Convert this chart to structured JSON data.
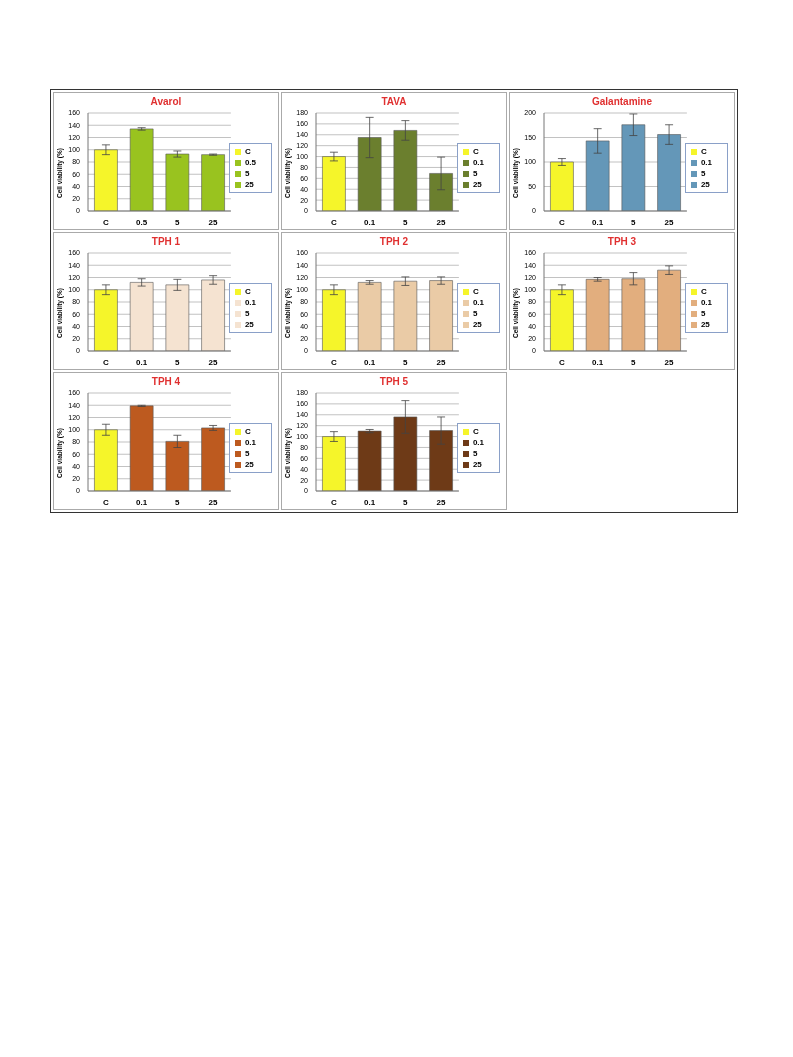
{
  "chart_data": [
    {
      "type": "bar",
      "title": "Avarol",
      "ylabel": "Cell viability (%)",
      "categories": [
        "C",
        "0.5",
        "5",
        "25"
      ],
      "stacked": true,
      "series": [
        {
          "name": "C",
          "color": "#f5f52a",
          "values": [
            100,
            null,
            null,
            null
          ],
          "errors": [
            8,
            null,
            null,
            null
          ]
        },
        {
          "name": "0.5",
          "color": "#99c31f",
          "values": [
            null,
            134,
            null,
            null
          ],
          "errors": [
            null,
            2,
            null,
            null
          ]
        },
        {
          "name": "5",
          "color": "#99c31f",
          "values": [
            null,
            null,
            93,
            null
          ],
          "errors": [
            null,
            null,
            5,
            null
          ]
        },
        {
          "name": "25",
          "color": "#99c31f",
          "values": [
            null,
            null,
            null,
            92
          ],
          "errors": [
            null,
            null,
            null,
            1
          ]
        }
      ],
      "ylim": [
        0,
        160
      ],
      "yticks": [
        0,
        20,
        40,
        60,
        80,
        100,
        120,
        140,
        160
      ],
      "grid": "y",
      "legend": "right"
    },
    {
      "type": "bar",
      "title": "TAVA",
      "ylabel": "Cell viability (%)",
      "categories": [
        "C",
        "0.1",
        "5",
        "25"
      ],
      "stacked": true,
      "series": [
        {
          "name": "C",
          "color": "#f5f52a",
          "values": [
            100,
            null,
            null,
            null
          ],
          "errors": [
            8,
            null,
            null,
            null
          ]
        },
        {
          "name": "0.1",
          "color": "#6b7f2e",
          "values": [
            null,
            135,
            null,
            null
          ],
          "errors": [
            null,
            37,
            null,
            null
          ]
        },
        {
          "name": "5",
          "color": "#6b7f2e",
          "values": [
            null,
            null,
            148,
            null
          ],
          "errors": [
            null,
            null,
            18,
            null
          ]
        },
        {
          "name": "25",
          "color": "#6b7f2e",
          "values": [
            null,
            null,
            null,
            69
          ],
          "errors": [
            null,
            null,
            null,
            30
          ]
        }
      ],
      "ylim": [
        0,
        180
      ],
      "yticks": [
        0,
        20,
        40,
        60,
        80,
        100,
        120,
        140,
        160,
        180
      ],
      "grid": "y",
      "legend": "right"
    },
    {
      "type": "bar",
      "title": "Galantamine",
      "ylabel": "Cell viability (%)",
      "categories": [
        "C",
        "0.1",
        "5",
        "25"
      ],
      "stacked": true,
      "series": [
        {
          "name": "C",
          "color": "#f5f52a",
          "values": [
            100,
            null,
            null,
            null
          ],
          "errors": [
            7,
            null,
            null,
            null
          ]
        },
        {
          "name": "0.1",
          "color": "#6497b8",
          "values": [
            null,
            143,
            null,
            null
          ],
          "errors": [
            null,
            25,
            null,
            null
          ]
        },
        {
          "name": "5",
          "color": "#6497b8",
          "values": [
            null,
            null,
            176,
            null
          ],
          "errors": [
            null,
            null,
            22,
            null
          ]
        },
        {
          "name": "25",
          "color": "#6497b8",
          "values": [
            null,
            null,
            null,
            156
          ],
          "errors": [
            null,
            null,
            null,
            20
          ]
        }
      ],
      "ylim": [
        0,
        200
      ],
      "yticks": [
        0,
        50,
        100,
        150,
        200
      ],
      "grid": "y",
      "legend": "right"
    },
    {
      "type": "bar",
      "title": "TPH 1",
      "ylabel": "Cell viability (%)",
      "categories": [
        "C",
        "0.1",
        "5",
        "25"
      ],
      "stacked": true,
      "series": [
        {
          "name": "C",
          "color": "#f5f52a",
          "values": [
            100,
            null,
            null,
            null
          ],
          "errors": [
            8,
            null,
            null,
            null
          ]
        },
        {
          "name": "0.1",
          "color": "#f5e3d1",
          "values": [
            null,
            112,
            null,
            null
          ],
          "errors": [
            null,
            6,
            null,
            null
          ]
        },
        {
          "name": "5",
          "color": "#f5e3d1",
          "values": [
            null,
            null,
            108,
            null
          ],
          "errors": [
            null,
            null,
            9,
            null
          ]
        },
        {
          "name": "25",
          "color": "#f5e3d1",
          "values": [
            null,
            null,
            null,
            116
          ],
          "errors": [
            null,
            null,
            null,
            7
          ]
        }
      ],
      "ylim": [
        0,
        160
      ],
      "yticks": [
        0,
        20,
        40,
        60,
        80,
        100,
        120,
        140,
        160
      ],
      "grid": "y",
      "legend": "right"
    },
    {
      "type": "bar",
      "title": "TPH 2",
      "ylabel": "Cell viability (%)",
      "categories": [
        "C",
        "0.1",
        "5",
        "25"
      ],
      "stacked": true,
      "series": [
        {
          "name": "C",
          "color": "#f5f52a",
          "values": [
            100,
            null,
            null,
            null
          ],
          "errors": [
            8,
            null,
            null,
            null
          ]
        },
        {
          "name": "0.1",
          "color": "#eacba6",
          "values": [
            null,
            112,
            null,
            null
          ],
          "errors": [
            null,
            3,
            null,
            null
          ]
        },
        {
          "name": "5",
          "color": "#eacba6",
          "values": [
            null,
            null,
            114,
            null
          ],
          "errors": [
            null,
            null,
            7,
            null
          ]
        },
        {
          "name": "25",
          "color": "#eacba6",
          "values": [
            null,
            null,
            null,
            115
          ],
          "errors": [
            null,
            null,
            null,
            6
          ]
        }
      ],
      "ylim": [
        0,
        160
      ],
      "yticks": [
        0,
        20,
        40,
        60,
        80,
        100,
        120,
        140,
        160
      ],
      "grid": "y",
      "legend": "right"
    },
    {
      "type": "bar",
      "title": "TPH 3",
      "ylabel": "Cell viability (%)",
      "categories": [
        "C",
        "0.1",
        "5",
        "25"
      ],
      "stacked": true,
      "series": [
        {
          "name": "C",
          "color": "#f5f52a",
          "values": [
            100,
            null,
            null,
            null
          ],
          "errors": [
            8,
            null,
            null,
            null
          ]
        },
        {
          "name": "0.1",
          "color": "#e2ae7e",
          "values": [
            null,
            117,
            null,
            null
          ],
          "errors": [
            null,
            3,
            null,
            null
          ]
        },
        {
          "name": "5",
          "color": "#e2ae7e",
          "values": [
            null,
            null,
            118,
            null
          ],
          "errors": [
            null,
            null,
            10,
            null
          ]
        },
        {
          "name": "25",
          "color": "#e2ae7e",
          "values": [
            null,
            null,
            null,
            132
          ],
          "errors": [
            null,
            null,
            null,
            7
          ]
        }
      ],
      "ylim": [
        0,
        160
      ],
      "yticks": [
        0,
        20,
        40,
        60,
        80,
        100,
        120,
        140,
        160
      ],
      "grid": "y",
      "legend": "right"
    },
    {
      "type": "bar",
      "title": "TPH 4",
      "ylabel": "Cell viability (%)",
      "categories": [
        "C",
        "0.1",
        "5",
        "25"
      ],
      "stacked": true,
      "series": [
        {
          "name": "C",
          "color": "#f5f52a",
          "values": [
            100,
            null,
            null,
            null
          ],
          "errors": [
            9,
            null,
            null,
            null
          ]
        },
        {
          "name": "0.1",
          "color": "#bd5a1f",
          "values": [
            null,
            139,
            null,
            null
          ],
          "errors": [
            null,
            1,
            null,
            null
          ]
        },
        {
          "name": "5",
          "color": "#bd5a1f",
          "values": [
            null,
            null,
            81,
            null
          ],
          "errors": [
            null,
            null,
            10,
            null
          ]
        },
        {
          "name": "25",
          "color": "#bd5a1f",
          "values": [
            null,
            null,
            null,
            103
          ],
          "errors": [
            null,
            null,
            null,
            4
          ]
        }
      ],
      "ylim": [
        0,
        160
      ],
      "yticks": [
        0,
        20,
        40,
        60,
        80,
        100,
        120,
        140,
        160
      ],
      "grid": "y",
      "legend": "right"
    },
    {
      "type": "bar",
      "title": "TPH 5",
      "ylabel": "Cell viability (%)",
      "categories": [
        "C",
        "0.1",
        "5",
        "25"
      ],
      "stacked": true,
      "series": [
        {
          "name": "C",
          "color": "#f5f52a",
          "values": [
            100,
            null,
            null,
            null
          ],
          "errors": [
            9,
            null,
            null,
            null
          ]
        },
        {
          "name": "0.1",
          "color": "#6e3a17",
          "values": [
            null,
            110,
            null,
            null
          ],
          "errors": [
            null,
            3,
            null,
            null
          ]
        },
        {
          "name": "5",
          "color": "#6e3a17",
          "values": [
            null,
            null,
            136,
            null
          ],
          "errors": [
            null,
            null,
            30,
            null
          ]
        },
        {
          "name": "25",
          "color": "#6e3a17",
          "values": [
            null,
            null,
            null,
            111
          ],
          "errors": [
            null,
            null,
            null,
            25
          ]
        }
      ],
      "ylim": [
        0,
        180
      ],
      "yticks": [
        0,
        20,
        40,
        60,
        80,
        100,
        120,
        140,
        160,
        180
      ],
      "grid": "y",
      "legend": "right"
    }
  ]
}
